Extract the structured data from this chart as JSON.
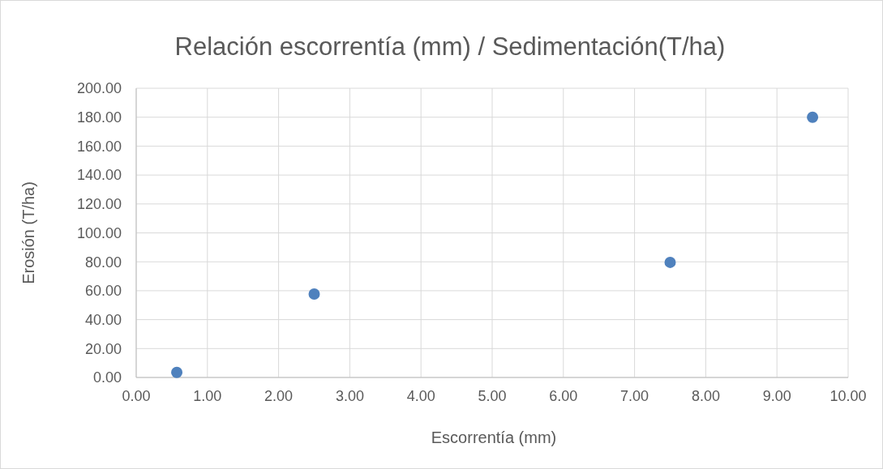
{
  "chart_data": {
    "type": "scatter",
    "title": "Relación escorrentía (mm) / Sedimentación(T/ha)",
    "xlabel": "Escorrentía (mm)",
    "ylabel": "Erosión (T/ha)",
    "x": [
      0.57,
      2.5,
      7.5,
      9.5
    ],
    "series": [
      {
        "color": "#4f81bd",
        "values": [
          3.5,
          57.7,
          79.6,
          180
        ]
      }
    ],
    "xlim": [
      0,
      10
    ],
    "ylim": [
      0,
      200
    ],
    "xticks": [
      {
        "value": 0,
        "label": "0.00"
      },
      {
        "value": 1,
        "label": "1.00"
      },
      {
        "value": 2,
        "label": "2.00"
      },
      {
        "value": 3,
        "label": "3.00"
      },
      {
        "value": 4,
        "label": "4.00"
      },
      {
        "value": 5,
        "label": "5.00"
      },
      {
        "value": 6,
        "label": "6.00"
      },
      {
        "value": 7,
        "label": "7.00"
      },
      {
        "value": 8,
        "label": "8.00"
      },
      {
        "value": 9,
        "label": "9.00"
      },
      {
        "value": 10,
        "label": "10.00"
      }
    ],
    "yticks": [
      {
        "value": 0,
        "label": "0.00"
      },
      {
        "value": 20,
        "label": "20.00"
      },
      {
        "value": 40,
        "label": "40.00"
      },
      {
        "value": 60,
        "label": "60.00"
      },
      {
        "value": 80,
        "label": "80.00"
      },
      {
        "value": 100,
        "label": "100.00"
      },
      {
        "value": 120,
        "label": "120.00"
      },
      {
        "value": 140,
        "label": "140.00"
      },
      {
        "value": 160,
        "label": "160.00"
      },
      {
        "value": 180,
        "label": "180.00"
      },
      {
        "value": 200,
        "label": "200.00"
      }
    ],
    "grid": true,
    "marker": "circle"
  }
}
